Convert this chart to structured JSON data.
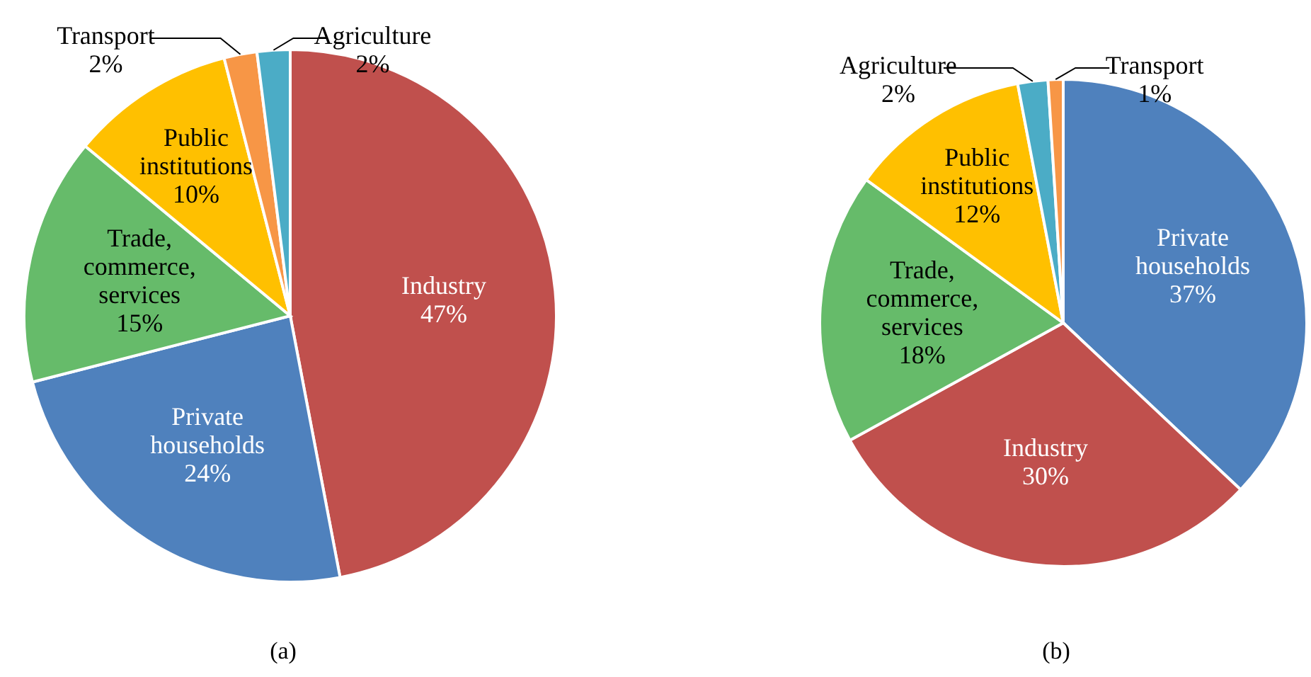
{
  "chart_data": [
    {
      "type": "pie",
      "categories": [
        "Industry",
        "Private households",
        "Trade, commerce, services",
        "Public institutions",
        "Transport",
        "Agriculture"
      ],
      "values": [
        47,
        24,
        15,
        10,
        2,
        2
      ],
      "value_labels": [
        "47%",
        "24%",
        "15%",
        "10%",
        "2%",
        "2%"
      ],
      "colors": [
        "#c0504d",
        "#4f81bd",
        "#66bb6a",
        "#ffc000",
        "#f79646",
        "#4bacc6"
      ],
      "annotations": [
        "(a)"
      ],
      "legend": false
    },
    {
      "type": "pie",
      "categories": [
        "Private households",
        "Industry",
        "Trade, commerce, services",
        "Public institutions",
        "Agriculture",
        "Transport"
      ],
      "values": [
        37,
        30,
        18,
        12,
        2,
        1
      ],
      "value_labels": [
        "37%",
        "30%",
        "18%",
        "12%",
        "2%",
        "1%"
      ],
      "colors": [
        "#4f81bd",
        "#c0504d",
        "#66bb6a",
        "#ffc000",
        "#4bacc6",
        "#f79646"
      ],
      "annotations": [
        "(b)"
      ],
      "legend": false
    }
  ]
}
